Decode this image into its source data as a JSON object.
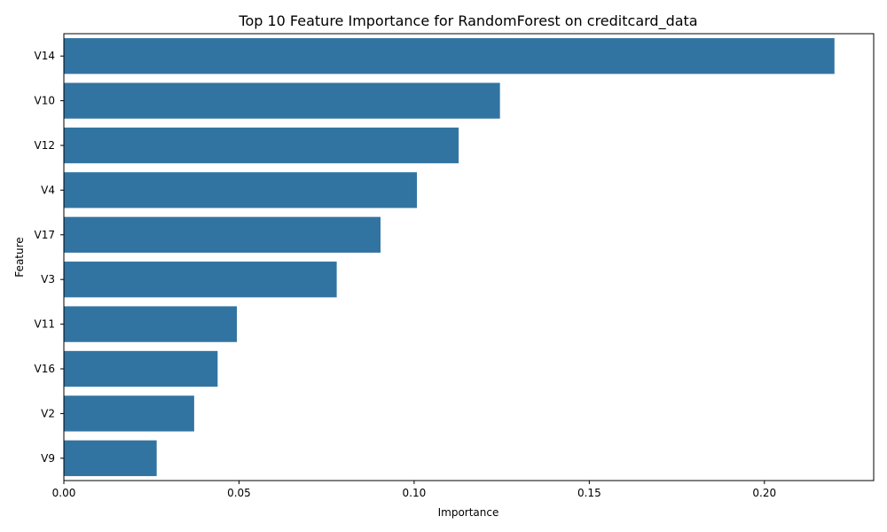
{
  "chart_data": {
    "type": "bar",
    "orientation": "horizontal",
    "title": "Top 10 Feature Importance for RandomForest on creditcard_data",
    "xlabel": "Importance",
    "ylabel": "Feature",
    "categories": [
      "V14",
      "V10",
      "V12",
      "V4",
      "V17",
      "V3",
      "V11",
      "V16",
      "V2",
      "V9"
    ],
    "values": [
      0.22,
      0.1245,
      0.1127,
      0.1008,
      0.0904,
      0.0779,
      0.0494,
      0.0439,
      0.0372,
      0.0265
    ],
    "xlim": [
      0,
      0.2312
    ],
    "xticks": [
      0.0,
      0.05,
      0.1,
      0.15,
      0.2
    ],
    "xtick_labels": [
      "0.00",
      "0.05",
      "0.10",
      "0.15",
      "0.20"
    ],
    "bar_color": "#3274a1",
    "grid": false,
    "legend": false
  }
}
